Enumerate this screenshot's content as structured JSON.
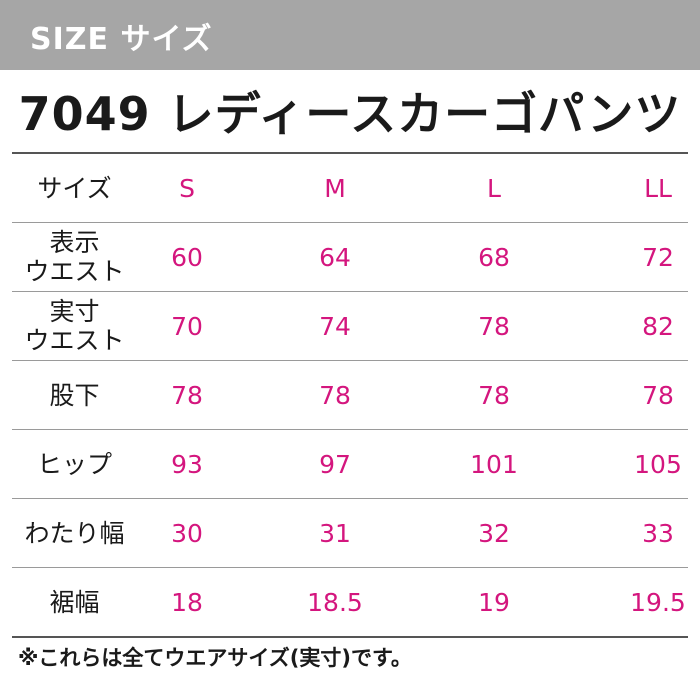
{
  "header": {
    "label": "SIZE サイズ"
  },
  "title": "7049 レディースカーゴパンツ",
  "table": {
    "rows": [
      {
        "label": "サイズ",
        "cells": [
          "S",
          "M",
          "L",
          "LL"
        ]
      },
      {
        "label": "表示\nウエスト",
        "cells": [
          "60",
          "64",
          "68",
          "72"
        ]
      },
      {
        "label": "実寸\nウエスト",
        "cells": [
          "70",
          "74",
          "78",
          "82"
        ]
      },
      {
        "label": "股下",
        "cells": [
          "78",
          "78",
          "78",
          "78"
        ]
      },
      {
        "label": "ヒップ",
        "cells": [
          "93",
          "97",
          "101",
          "105"
        ]
      },
      {
        "label": "わたり幅",
        "cells": [
          "30",
          "31",
          "32",
          "33"
        ]
      },
      {
        "label": "裾幅",
        "cells": [
          "18",
          "18.5",
          "19",
          "19.5"
        ]
      }
    ]
  },
  "note": "※これらは全てウエアサイズ(実寸)です。",
  "colors": {
    "header_bg": "#a6a6a6",
    "value_text": "#d4167e",
    "label_text": "#1a1a1a"
  }
}
